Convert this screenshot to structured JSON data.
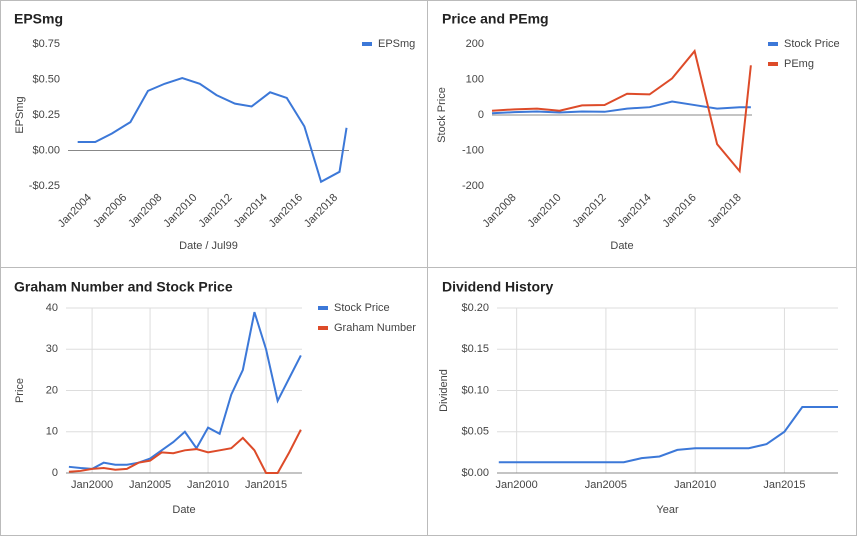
{
  "chart_data": [
    {
      "type": "line",
      "title": "EPSmg",
      "y_label": "EPSmg",
      "x_label": "Date / Jul99",
      "x": [
        2003.3,
        2004.3,
        2005.25,
        2006.3,
        2007.3,
        2008.25,
        2009.25,
        2010.25,
        2011.2,
        2012.25,
        2013.2,
        2014.25,
        2015.2,
        2016.2,
        2017.15,
        2018.2,
        2018.6
      ],
      "series": [
        {
          "name": "EPSmg",
          "color": "#3c78d8",
          "values": [
            0.06,
            0.06,
            0.12,
            0.2,
            0.42,
            0.47,
            0.51,
            0.47,
            0.39,
            0.33,
            0.31,
            0.41,
            0.37,
            0.17,
            -0.22,
            -0.15,
            0.16
          ]
        }
      ],
      "xlim": [
        2002.75,
        2018.74
      ],
      "xticks": [
        {
          "value": 2004,
          "label": "Jan2004"
        },
        {
          "value": 2006,
          "label": "Jan2006"
        },
        {
          "value": 2008,
          "label": "Jan2008"
        },
        {
          "value": 2010,
          "label": "Jan2010"
        },
        {
          "value": 2012,
          "label": "Jan2012"
        },
        {
          "value": 2014,
          "label": "Jan2014"
        },
        {
          "value": 2016,
          "label": "Jan2016"
        },
        {
          "value": 2018,
          "label": "Jan2018"
        }
      ],
      "ylim": [
        -0.25,
        0.75
      ],
      "yticks": [
        {
          "value": 0.75,
          "label": "$0.75"
        },
        {
          "value": 0.5,
          "label": "$0.50"
        },
        {
          "value": 0.25,
          "label": "$0.25"
        },
        {
          "value": 0,
          "label": "$0.00"
        },
        {
          "value": -0.25,
          "label": "-$0.25"
        }
      ],
      "grid": false,
      "legend": "right"
    },
    {
      "type": "line",
      "title": "Price and PEmg",
      "y_label": "Stock Price",
      "x_label": "Date",
      "x": [
        2007,
        2008,
        2009,
        2010,
        2011,
        2012,
        2013,
        2014,
        2015,
        2016,
        2017,
        2018,
        2018.5
      ],
      "series": [
        {
          "name": "Stock Price",
          "color": "#3c78d8",
          "values": [
            5,
            8,
            10,
            7,
            10,
            9,
            18,
            22,
            38,
            28,
            18,
            22,
            22
          ]
        },
        {
          "name": "PEmg",
          "color": "#dd4b29",
          "values": [
            12,
            16,
            18,
            12,
            27,
            28,
            60,
            58,
            103,
            180,
            -82,
            -158,
            140
          ]
        }
      ],
      "xlim": [
        2007,
        2018.55
      ],
      "xticks": [
        {
          "value": 2008,
          "label": "Jan2008"
        },
        {
          "value": 2010,
          "label": "Jan2010"
        },
        {
          "value": 2012,
          "label": "Jan2012"
        },
        {
          "value": 2014,
          "label": "Jan2014"
        },
        {
          "value": 2016,
          "label": "Jan2016"
        },
        {
          "value": 2018,
          "label": "Jan2018"
        }
      ],
      "ylim": [
        -200,
        200
      ],
      "yticks": [
        200,
        100,
        0,
        -100,
        -200
      ],
      "grid": false,
      "legend": "right"
    },
    {
      "type": "line",
      "title": "Graham Number and Stock Price",
      "y_label": "Price",
      "x_label": "Date",
      "x": [
        1998,
        1999,
        2000,
        2001,
        2002,
        2003,
        2004,
        2005,
        2006,
        2007,
        2008,
        2009,
        2010,
        2011,
        2012,
        2013,
        2014,
        2015,
        2016,
        2017,
        2018
      ],
      "series": [
        {
          "name": "Stock Price",
          "color": "#3c78d8",
          "values": [
            1.5,
            1.2,
            1,
            2.5,
            2,
            2,
            2.5,
            3.5,
            5.5,
            7.5,
            10,
            6,
            11,
            9.5,
            19,
            25,
            39,
            30,
            17.5,
            23,
            28.5
          ]
        },
        {
          "name": "Graham Number",
          "color": "#dd4b29",
          "values": [
            0.3,
            0.5,
            1,
            1.2,
            0.8,
            1,
            2.5,
            3,
            5,
            4.8,
            5.5,
            5.8,
            5,
            5.5,
            6,
            8.5,
            5.5,
            0,
            0,
            5,
            10.5
          ]
        }
      ],
      "xlim": [
        1997.75,
        2018.1
      ],
      "xticks": [
        {
          "value": 2000,
          "label": "Jan2000"
        },
        {
          "value": 2005,
          "label": "Jan2005"
        },
        {
          "value": 2010,
          "label": "Jan2010"
        },
        {
          "value": 2015,
          "label": "Jan2015"
        }
      ],
      "ylim": [
        0,
        40
      ],
      "yticks": [
        0,
        10,
        20,
        30,
        40
      ],
      "grid": true,
      "legend": "right"
    },
    {
      "type": "line",
      "title": "Dividend History",
      "y_label": "Dividend",
      "x_label": "Year",
      "x": [
        1999,
        2000,
        2001,
        2002,
        2003,
        2004,
        2005,
        2006,
        2007,
        2008,
        2009,
        2010,
        2011,
        2012,
        2013,
        2014,
        2015,
        2016,
        2017,
        2018
      ],
      "series": [
        {
          "color": "#3c78d8",
          "values": [
            0.013,
            0.013,
            0.013,
            0.013,
            0.013,
            0.013,
            0.013,
            0.013,
            0.018,
            0.02,
            0.028,
            0.03,
            0.03,
            0.03,
            0.03,
            0.035,
            0.05,
            0.08,
            0.08,
            0.08
          ]
        }
      ],
      "xlim": [
        1998.9,
        2018
      ],
      "xticks": [
        {
          "value": 2000,
          "label": "Jan2000"
        },
        {
          "value": 2005,
          "label": "Jan2005"
        },
        {
          "value": 2010,
          "label": "Jan2010"
        },
        {
          "value": 2015,
          "label": "Jan2015"
        }
      ],
      "ylim": [
        0,
        0.2
      ],
      "yticks": [
        {
          "value": 0,
          "label": "$0.00"
        },
        {
          "value": 0.05,
          "label": "$0.05"
        },
        {
          "value": 0.1,
          "label": "$0.10"
        },
        {
          "value": 0.15,
          "label": "$0.15"
        },
        {
          "value": 0.2,
          "label": "$0.20"
        }
      ],
      "grid": true
    }
  ]
}
